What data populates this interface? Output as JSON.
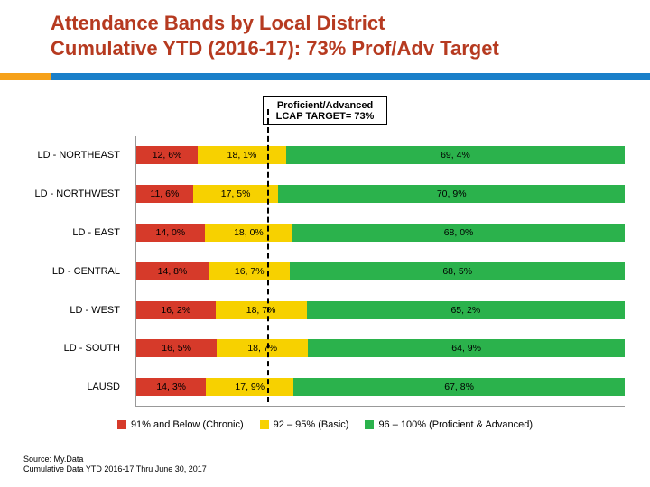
{
  "title": {
    "line1": "Attendance Bands by Local District",
    "line2": "Cumulative YTD (2016-17): 73% Prof/Adv Target",
    "color": "#b63a20",
    "fontsize": 22
  },
  "accent": {
    "left_color": "#f6a11a",
    "right_color": "#1a7fc9",
    "height": 8
  },
  "target_box": {
    "line1": "Proficient/Advanced",
    "line2": "LCAP TARGET= 73%",
    "target_pct": 27
  },
  "chart": {
    "type": "stacked-horizontal-bar",
    "series_colors": [
      "#d63a2a",
      "#f7d100",
      "#2bb24c"
    ],
    "background_color": "#ffffff",
    "axis_color": "#999999",
    "label_fontsize": 11,
    "value_fontsize": 10.5,
    "categories": [
      {
        "label": "LD - NORTHEAST",
        "values": [
          12.6,
          18.1,
          69.4
        ],
        "labels": [
          "12, 6%",
          "18, 1%",
          "69, 4%"
        ]
      },
      {
        "label": "LD - NORTHWEST",
        "values": [
          11.6,
          17.5,
          70.9
        ],
        "labels": [
          "11, 6%",
          "17, 5%",
          "70, 9%"
        ]
      },
      {
        "label": "LD - EAST",
        "values": [
          14.0,
          18.0,
          68.0
        ],
        "labels": [
          "14, 0%",
          "18, 0%",
          "68, 0%"
        ]
      },
      {
        "label": "LD - CENTRAL",
        "values": [
          14.8,
          16.7,
          68.5
        ],
        "labels": [
          "14, 8%",
          "16, 7%",
          "68, 5%"
        ]
      },
      {
        "label": "LD - WEST",
        "values": [
          16.2,
          18.7,
          65.2
        ],
        "labels": [
          "16, 2%",
          "18, 7%",
          "65, 2%"
        ]
      },
      {
        "label": "LD - SOUTH",
        "values": [
          16.5,
          18.7,
          64.9
        ],
        "labels": [
          "16, 5%",
          "18, 7%",
          "64, 9%"
        ]
      },
      {
        "label": "LAUSD",
        "values": [
          14.3,
          17.9,
          67.8
        ],
        "labels": [
          "14, 3%",
          "17, 9%",
          "67, 8%"
        ]
      }
    ]
  },
  "legend": {
    "items": [
      {
        "label": "91% and Below (Chronic)",
        "color": "#d63a2a"
      },
      {
        "label": "92 – 95% (Basic)",
        "color": "#f7d100"
      },
      {
        "label": "96 – 100% (Proficient & Advanced)",
        "color": "#2bb24c"
      }
    ]
  },
  "footer": {
    "line1": "Source: My.Data",
    "line2": "Cumulative Data YTD 2016-17 Thru June 30, 2017"
  }
}
